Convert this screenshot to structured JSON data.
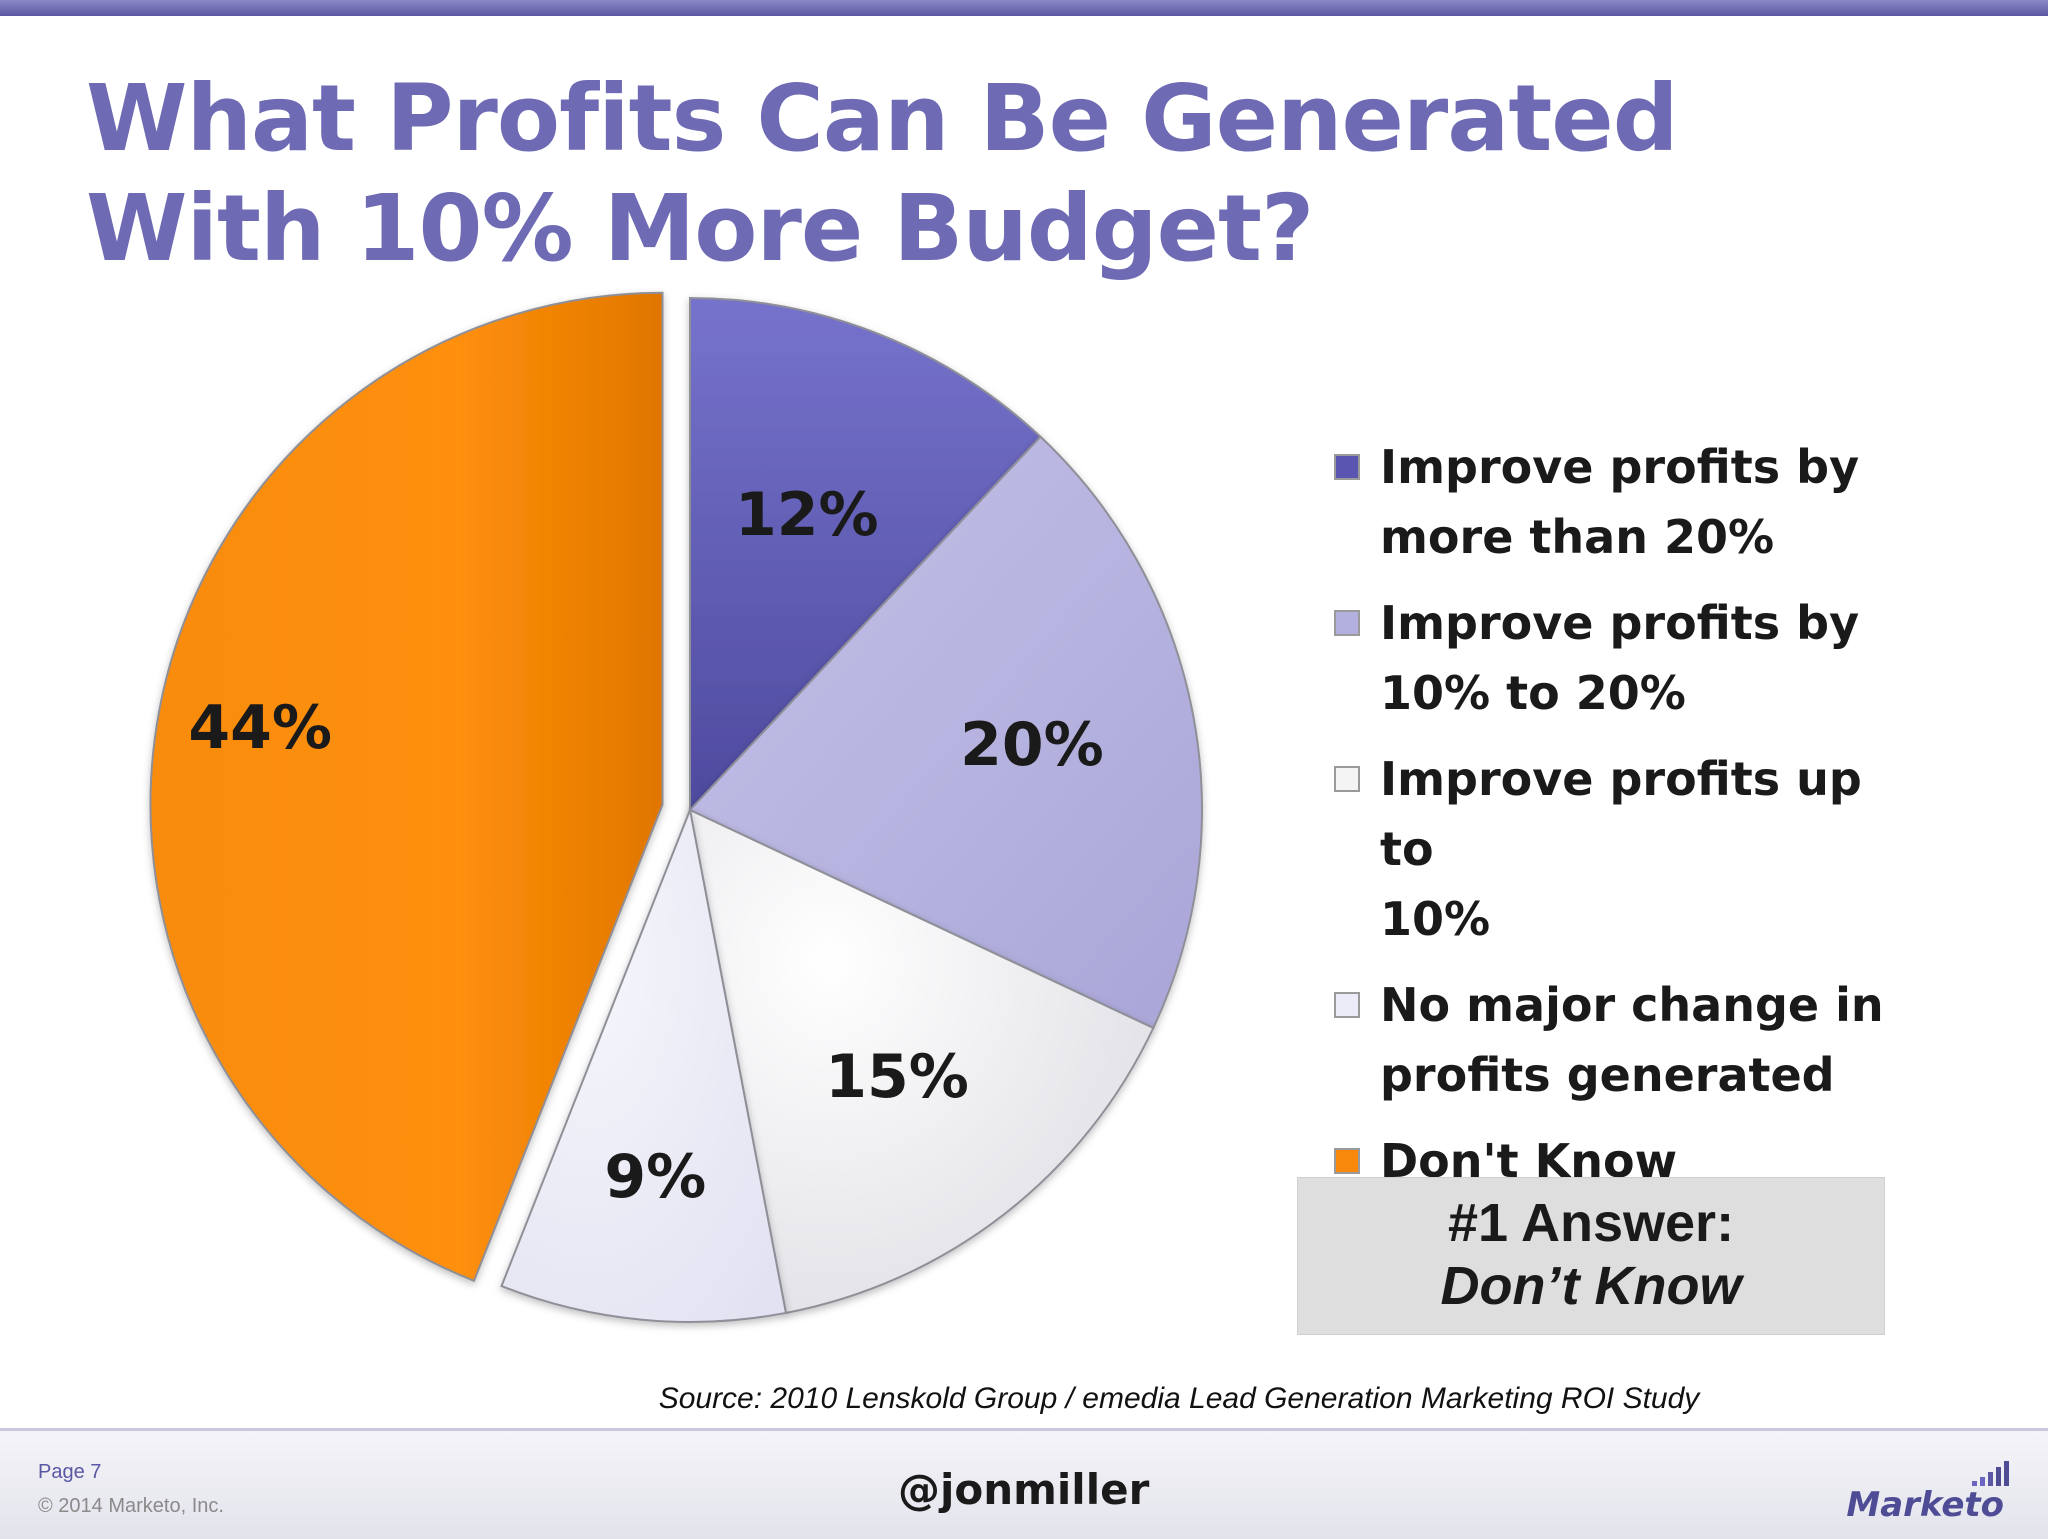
{
  "title": "What Profits Can Be Generated With 10% More Budget?",
  "chart_data": {
    "type": "pie",
    "title": "What Profits Can Be Generated With 10% More Budget?",
    "categories": [
      "Improve profits by more than 20%",
      "Improve profits by 10% to 20%",
      "Improve profits up to 10%",
      "No major change in profits generated",
      "Don't Know"
    ],
    "values": [
      12,
      20,
      15,
      9,
      44
    ],
    "value_labels": [
      "12%",
      "20%",
      "15%",
      "9%",
      "44%"
    ],
    "colors": [
      "#6a66c0",
      "#b3b0df",
      "#f4f4f7",
      "#ececf8",
      "#f9890c"
    ],
    "exploded": [
      "Don't Know"
    ],
    "legend_position": "right"
  },
  "legend": {
    "items": [
      {
        "line1": "Improve profits by",
        "line2": "more than 20%",
        "color": "#5a55b0"
      },
      {
        "line1": "Improve profits by",
        "line2": "10% to 20%",
        "color": "#b3b0df"
      },
      {
        "line1": "Improve profits up to",
        "line2": "10%",
        "color": "#f4f4f4"
      },
      {
        "line1": "No major change in",
        "line2": "profits generated",
        "color": "#ececf8"
      },
      {
        "line1": "Don't Know",
        "line2": "",
        "color": "#f9890c"
      }
    ]
  },
  "answer_box": {
    "line1": "#1 Answer:",
    "line2": "Don’t Know"
  },
  "source": "Source: 2010 Lenskold Group / emedia Lead Generation Marketing ROI Study",
  "footer": {
    "page": "Page 7",
    "copyright": "© 2014 Marketo, Inc.",
    "handle": "@jonmiller",
    "logo": "Marketo"
  }
}
